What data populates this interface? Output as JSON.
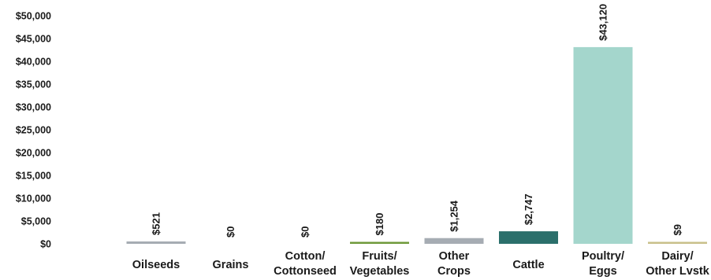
{
  "chart_data": {
    "type": "bar",
    "categories": [
      [
        "Oilseeds"
      ],
      [
        "Grains"
      ],
      [
        "Cotton/",
        "Cottonseed"
      ],
      [
        "Fruits/",
        "Vegetables"
      ],
      [
        "Other",
        "Crops"
      ],
      [
        "Cattle"
      ],
      [
        "Poultry/",
        "Eggs"
      ],
      [
        "Dairy/",
        "Other Lvstk"
      ]
    ],
    "values": [
      521,
      0,
      0,
      180,
      1254,
      2747,
      43120,
      9
    ],
    "data_labels": [
      "$521",
      "$0",
      "$0",
      "$180",
      "$1,254",
      "$2,747",
      "$43,120",
      "$9"
    ],
    "colors": [
      "#a6acb3",
      "#a6acb3",
      "#a6acb3",
      "#6f9a3a",
      "#a6acb3",
      "#2b6f6b",
      "#a4d6cc",
      "#c9c08a"
    ],
    "ylim": [
      0,
      50000
    ],
    "yticks": [
      0,
      5000,
      10000,
      15000,
      20000,
      25000,
      30000,
      35000,
      40000,
      45000,
      50000
    ],
    "ytick_labels": [
      "$0",
      "$5,000",
      "$10,000",
      "$15,000",
      "$20,000",
      "$25,000",
      "$30,000",
      "$35,000",
      "$40,000",
      "$45,000",
      "$50,000"
    ],
    "grid": false,
    "legend": "none"
  }
}
